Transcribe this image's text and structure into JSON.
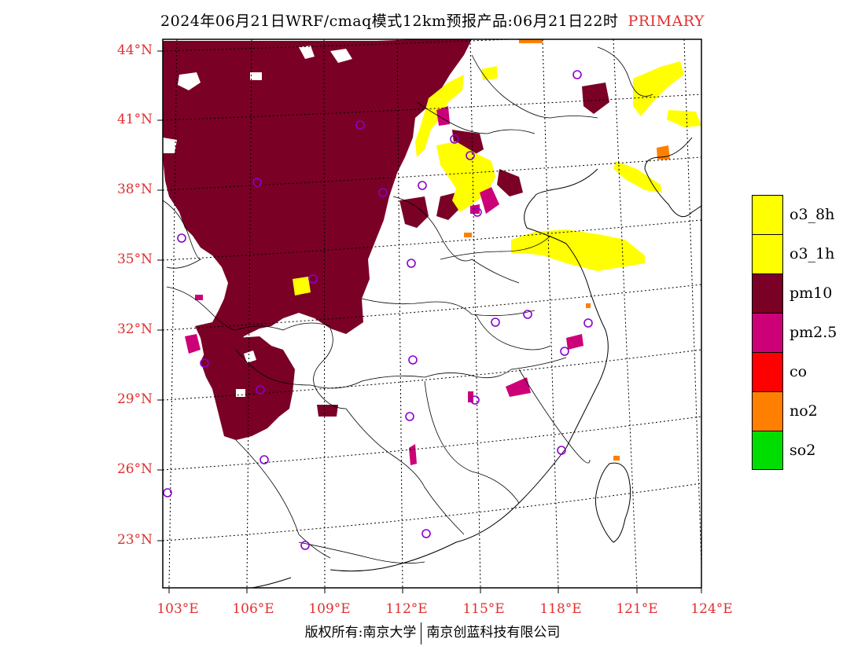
{
  "title": {
    "main": "2024年06月21日WRF/cmaq模式12km预报产品:06月21日22时",
    "tag": "PRIMARY"
  },
  "axes": {
    "lat_labels": [
      "44°N",
      "41°N",
      "38°N",
      "35°N",
      "32°N",
      "29°N",
      "26°N",
      "23°N"
    ],
    "lon_labels": [
      "103°E",
      "106°E",
      "109°E",
      "112°E",
      "115°E",
      "118°E",
      "121°E",
      "124°E"
    ]
  },
  "legend": [
    {
      "label": "o3_8h",
      "color": "#ffff00"
    },
    {
      "label": "o3_1h",
      "color": "#ffff00"
    },
    {
      "label": "pm10",
      "color": "#7a0026"
    },
    {
      "label": "pm2.5",
      "color": "#cc0077"
    },
    {
      "label": "co",
      "color": "#ff0000"
    },
    {
      "label": "no2",
      "color": "#ff8000"
    },
    {
      "label": "so2",
      "color": "#00dd00"
    }
  ],
  "footer": {
    "left": "版权所有:南京大学",
    "right": "南京创蓝科技有限公司"
  }
}
